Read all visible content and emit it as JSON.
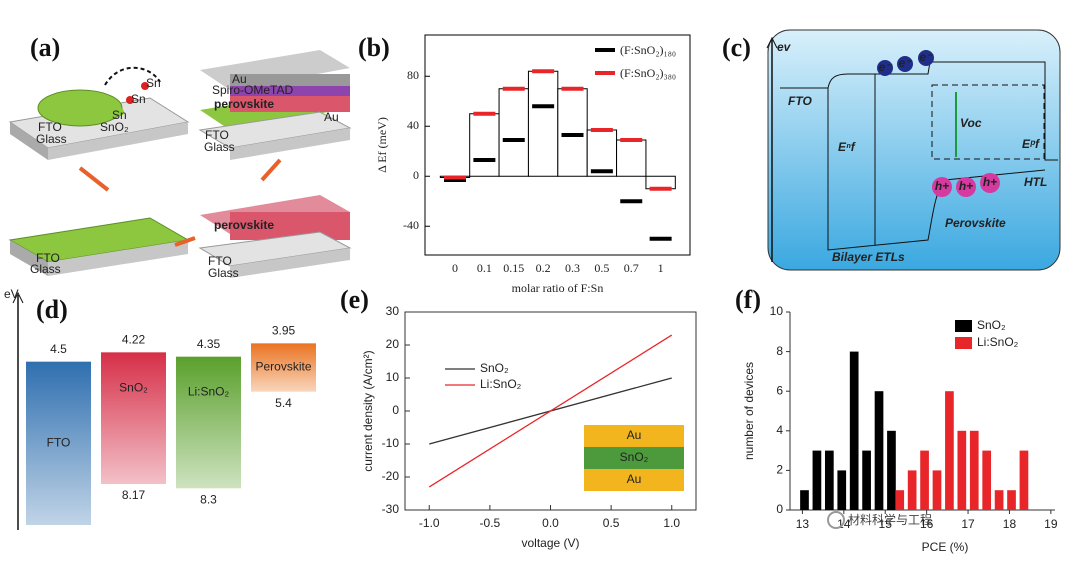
{
  "panel_a": {
    "label": "(a)",
    "texts": [
      "Sn",
      "Sn",
      "Sn",
      "SnO₂",
      "FTO",
      "Glass",
      "Au",
      "Spiro-OMeTAD",
      "perovskite",
      "FTO",
      "Glass",
      "Au",
      "FTO",
      "Glass",
      "perovskite",
      "FTO",
      "Glass"
    ]
  },
  "panel_c": {
    "label": "(c)",
    "texts": [
      "ev",
      "FTO",
      "Eⁿf",
      "Voc",
      "Eᵖf",
      "HTL",
      "Perovskite",
      "Bilayer ETLs",
      "e⁻",
      "e⁻",
      "e⁻",
      "h+",
      "h+",
      "h+"
    ]
  },
  "chart_data": [
    {
      "type": "bar",
      "label": "(b)",
      "y_label": "Δ Ef (meV)",
      "x_label": "molar ratio of F:Sn",
      "categories": [
        "0",
        "0.1",
        "0.15",
        "0.2",
        "0.3",
        "0.5",
        "0.7",
        "1"
      ],
      "series": [
        {
          "name": "(F:SnO₂)₁₈₀",
          "color": "#000000",
          "values": [
            -3,
            13,
            29,
            56,
            33,
            4,
            -20,
            -50
          ]
        },
        {
          "name": "(F:SnO₂)₃₈₀",
          "color": "#e8262a",
          "values": [
            -1,
            50,
            70,
            84,
            70,
            37,
            29,
            -10
          ]
        }
      ],
      "ylim": [
        -63,
        113
      ],
      "yticks": [
        -40,
        0,
        40,
        80
      ],
      "legend": "upper right"
    },
    {
      "type": "energy_levels",
      "label": "(d)",
      "y_label": "eV",
      "ylim": [
        2.8,
        9.4
      ],
      "levels": [
        {
          "name": "FTO",
          "color": "#2f6faf",
          "top": 4.5
        },
        {
          "name": "SnO₂",
          "color": "#d62f48",
          "top": 4.22,
          "bottom": 8.17
        },
        {
          "name": "Li:SnO₂",
          "color": "#5aa02c",
          "top": 4.35,
          "bottom": 8.3
        },
        {
          "name": "Perovskite",
          "color": "#ea7421",
          "top": 3.95,
          "bottom": 5.4
        }
      ]
    },
    {
      "type": "line",
      "label": "(e)",
      "y_label": "current density (A/cm²)",
      "x_label": "voltage (V)",
      "x": [
        -1,
        1
      ],
      "series": [
        {
          "name": "SnO₂",
          "color": "#333333",
          "values": [
            -10,
            10
          ]
        },
        {
          "name": "Li:SnO₂",
          "color": "#e8262a",
          "values": [
            -23,
            23
          ]
        }
      ],
      "xlim": [
        -1.2,
        1.2
      ],
      "ylim": [
        -30,
        30
      ],
      "xticks": [
        {
          "value": -1,
          "label": "-1.0"
        },
        {
          "value": -0.5,
          "label": "-0.5"
        },
        {
          "value": 0,
          "label": "0.0"
        },
        {
          "value": 0.5,
          "label": "0.5"
        },
        {
          "value": 1,
          "label": "1.0"
        }
      ],
      "yticks": [
        -30,
        -20,
        -10,
        0,
        10,
        20,
        30
      ],
      "inset": [
        {
          "text": "Au",
          "color": "#f2b51d"
        },
        {
          "text": "SnO₂",
          "color": "#4c9a3b"
        },
        {
          "text": "Au",
          "color": "#f2b51d"
        }
      ]
    },
    {
      "type": "histogram",
      "label": "(f)",
      "y_label": "number of devices",
      "x_label": "PCE (%)",
      "series": [
        {
          "name": "SnO₂",
          "color": "#000000",
          "bins": [
            12.9,
            13.2,
            13.5,
            13.8,
            14.1,
            14.4,
            14.7,
            15.0,
            15.3
          ],
          "values": [
            1,
            3,
            3,
            2,
            8,
            3,
            6,
            4
          ]
        },
        {
          "name": "Li:SnO₂",
          "color": "#e8262a",
          "bins": [
            15.2,
            15.5,
            15.8,
            16.1,
            16.4,
            16.7,
            17.0,
            17.3,
            17.6,
            17.9,
            18.2,
            18.5
          ],
          "values": [
            1,
            2,
            3,
            2,
            6,
            4,
            4,
            3,
            1,
            1,
            3
          ]
        }
      ],
      "xlim": [
        12.7,
        19.1
      ],
      "ylim": [
        0,
        10
      ],
      "xticks": [
        13,
        14,
        15,
        16,
        17,
        18,
        19
      ],
      "yticks": [
        0,
        2,
        4,
        6,
        8,
        10
      ],
      "legend": "upper right",
      "watermark": "材料科学与工程"
    }
  ]
}
